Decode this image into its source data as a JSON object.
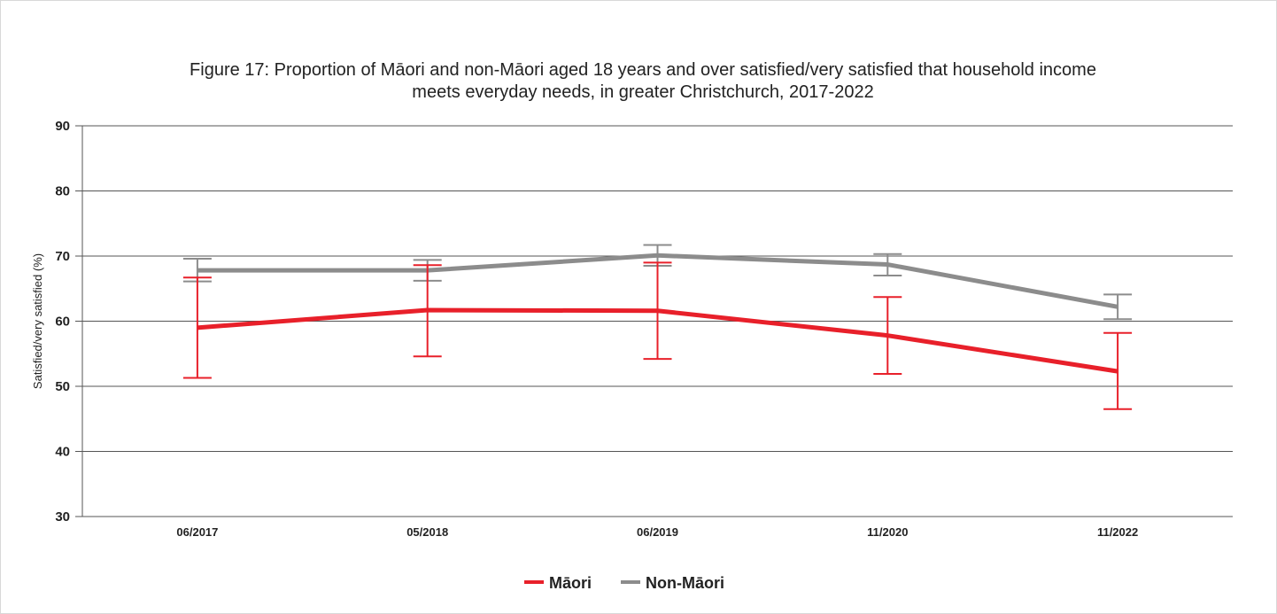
{
  "chart_data": {
    "type": "line",
    "title_lines": [
      "Figure 17: Proportion of Māori and non-Māori aged 18 years and over satisfied/very satisfied that household income",
      "meets everyday needs, in greater Christchurch, 2017-2022"
    ],
    "xlabel": "",
    "ylabel": "Satisfied/very satisfied (%)",
    "categories": [
      "06/2017",
      "05/2018",
      "06/2019",
      "11/2020",
      "11/2022"
    ],
    "ylim": [
      30,
      90
    ],
    "yticks": [
      "30",
      "40",
      "50",
      "60",
      "70",
      "80",
      "90"
    ],
    "grid": true,
    "legend_position": "bottom-center",
    "series": [
      {
        "name": "Māori",
        "color": "#e8202a",
        "values": [
          59.0,
          61.7,
          61.6,
          57.8,
          52.3
        ],
        "error_low": [
          51.3,
          54.6,
          54.2,
          51.9,
          46.5
        ],
        "error_high": [
          66.7,
          68.6,
          69.0,
          63.7,
          58.2
        ]
      },
      {
        "name": "Non-Māori",
        "color": "#8c8c8c",
        "values": [
          67.8,
          67.8,
          70.1,
          68.7,
          62.2
        ],
        "error_low": [
          66.1,
          66.2,
          68.5,
          67.0,
          60.3
        ],
        "error_high": [
          69.6,
          69.4,
          71.7,
          70.3,
          64.1
        ]
      }
    ]
  }
}
